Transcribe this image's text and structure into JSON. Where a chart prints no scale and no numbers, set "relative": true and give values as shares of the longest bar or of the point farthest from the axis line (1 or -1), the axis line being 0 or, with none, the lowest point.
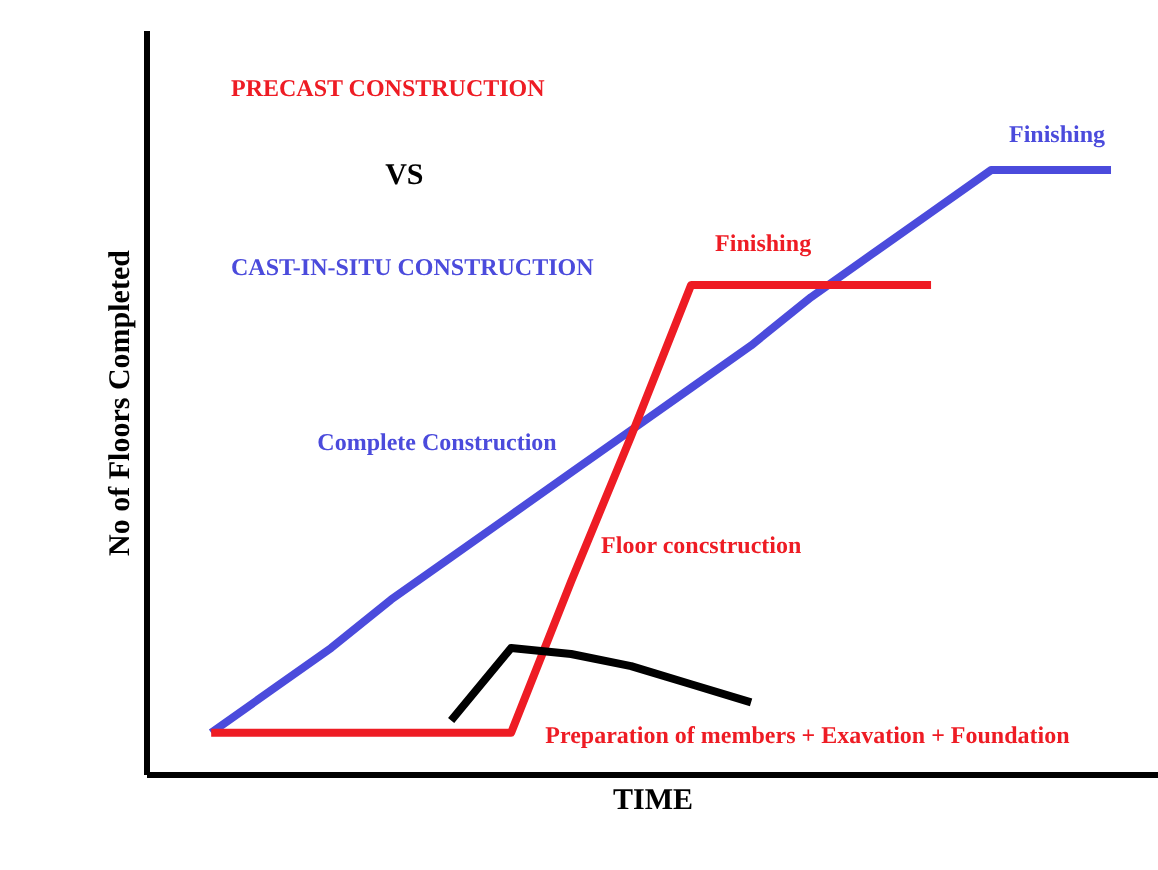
{
  "chart_data": {
    "type": "line",
    "relative": true,
    "xlabel": "TIME",
    "ylabel": "No of Floors Completed",
    "categories": [
      null,
      null,
      null,
      null,
      null,
      null,
      null,
      null,
      null,
      null,
      null,
      null,
      null,
      null,
      null,
      null
    ],
    "series": [
      {
        "color": "#4b4bdc",
        "values": [
          0.07,
          0.14,
          0.21,
          0.29,
          0.36,
          0.43,
          0.5,
          0.57,
          0.64,
          0.71,
          0.79,
          0.86,
          0.93,
          1.0,
          1.0,
          1.0
        ]
      },
      {
        "color": "#ee1c24",
        "values": [
          0.07,
          0.07,
          0.07,
          0.07,
          0.07,
          0.07,
          0.32,
          0.56,
          0.81,
          0.81,
          0.81,
          0.81,
          0.81,
          null,
          null,
          null
        ]
      },
      {
        "color": "#000000",
        "values": [
          null,
          null,
          null,
          null,
          0.09,
          0.21,
          0.2,
          0.18,
          0.15,
          0.12,
          null,
          null,
          null,
          null,
          null,
          null
        ]
      }
    ],
    "annotations": [
      "PRECAST CONSTRUCTION",
      "VS",
      "CAST-IN-SITU CONSTRUCTION",
      "Finishing",
      "Finishing",
      "Complete Construction",
      "Floor concstruction",
      "Preparation of members + Exavation + Foundation"
    ],
    "marker": "none",
    "line_style": "solid"
  }
}
